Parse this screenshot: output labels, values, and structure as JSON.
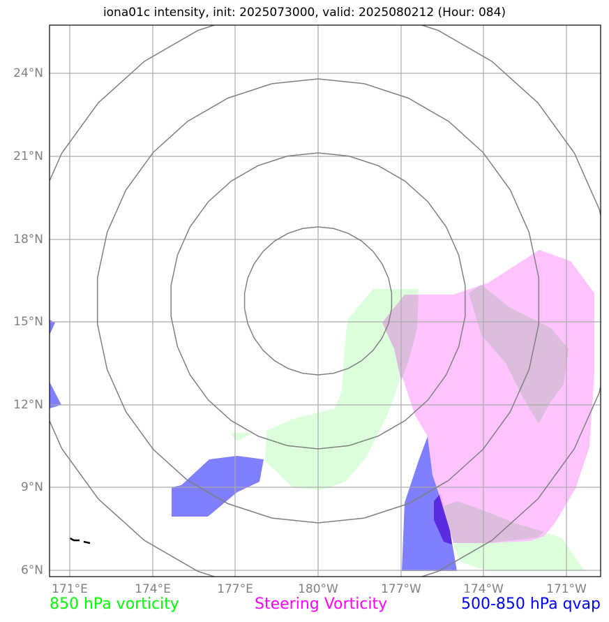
{
  "title": "iona01c intensity, init: 2025073000, valid: 2025080212 (Hour: 084)",
  "lat_labels": [
    "24°N",
    "21°N",
    "18°N",
    "15°N",
    "12°N",
    "9°N",
    "6°N"
  ],
  "lon_labels": [
    "171°E",
    "174°E",
    "177°E",
    "180°W",
    "177°W",
    "174°W",
    "171°W"
  ],
  "legend": {
    "vorticity_850": {
      "label": "850 hPa vorticity",
      "color": "#00ff00"
    },
    "steering": {
      "label": "Steering Vorticity",
      "color": "#ff00ff"
    },
    "qvap": {
      "label": "500-850 hPa qvap",
      "color": "#0000ff"
    }
  },
  "layer_colors": {
    "vorticity_850_fill": "#dcffdc",
    "steering_fill": "#ffbfff",
    "qvap_fill": "#7f7fff",
    "overlap_fill": "#dcbedc",
    "grid": "#aaaaaa",
    "range_rings": "#7f7f7f"
  }
}
